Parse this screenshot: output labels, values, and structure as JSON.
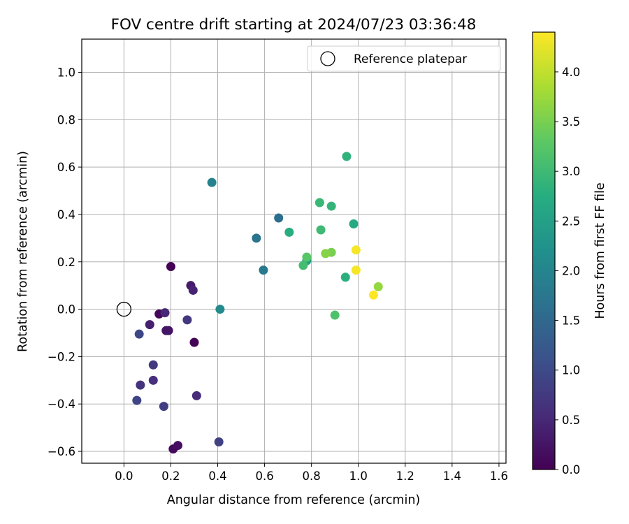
{
  "chart_data": {
    "type": "scatter",
    "title": "FOV centre drift starting at 2024/07/23 03:36:48",
    "xlabel": "Angular distance from reference (arcmin)",
    "ylabel": "Rotation from reference (arcmin)",
    "xlim": [
      -0.18,
      1.63
    ],
    "ylim": [
      -0.65,
      1.14
    ],
    "xticks": [
      "0.0",
      "0.2",
      "0.4",
      "0.6",
      "0.8",
      "1.0",
      "1.2",
      "1.4",
      "1.6"
    ],
    "yticks": [
      "−0.6",
      "−0.4",
      "−0.2",
      "0.0",
      "0.2",
      "0.4",
      "0.6",
      "0.8",
      "1.0"
    ],
    "grid": true,
    "legend": {
      "placement": "top-right",
      "entries": [
        "Reference platepar"
      ]
    },
    "reference_point": {
      "x": 0.0,
      "y": 0.0
    },
    "colorbar": {
      "label": "Hours from first FF file",
      "colormap": "viridis",
      "range": [
        0.0,
        4.4
      ],
      "ticks": [
        "0.0",
        "0.5",
        "1.0",
        "1.5",
        "2.0",
        "2.5",
        "3.0",
        "3.5",
        "4.0"
      ]
    },
    "series": [
      {
        "points": [
          {
            "x": 0.2,
            "y": 0.18,
            "c": 0.02
          },
          {
            "x": 0.3,
            "y": -0.14,
            "c": 0.05
          },
          {
            "x": 0.15,
            "y": -0.02,
            "c": 0.08
          },
          {
            "x": 0.21,
            "y": -0.59,
            "c": 0.12
          },
          {
            "x": 0.23,
            "y": -0.575,
            "c": 0.17
          },
          {
            "x": 0.19,
            "y": -0.09,
            "c": 0.22
          },
          {
            "x": 0.18,
            "y": -0.09,
            "c": 0.27
          },
          {
            "x": 0.285,
            "y": 0.1,
            "c": 0.33
          },
          {
            "x": 0.11,
            "y": -0.065,
            "c": 0.38
          },
          {
            "x": 0.295,
            "y": 0.08,
            "c": 0.45
          },
          {
            "x": 0.175,
            "y": -0.015,
            "c": 0.5
          },
          {
            "x": 0.31,
            "y": -0.365,
            "c": 0.55
          },
          {
            "x": 0.125,
            "y": -0.3,
            "c": 0.6
          },
          {
            "x": 0.07,
            "y": -0.32,
            "c": 0.65
          },
          {
            "x": 0.27,
            "y": -0.045,
            "c": 0.7
          },
          {
            "x": 0.125,
            "y": -0.235,
            "c": 0.75
          },
          {
            "x": 0.17,
            "y": -0.41,
            "c": 0.8
          },
          {
            "x": 0.405,
            "y": -0.56,
            "c": 0.85
          },
          {
            "x": 0.055,
            "y": -0.385,
            "c": 0.9
          },
          {
            "x": 0.065,
            "y": -0.105,
            "c": 0.95
          },
          {
            "x": 0.66,
            "y": 0.385,
            "c": 1.6
          },
          {
            "x": 0.565,
            "y": 0.3,
            "c": 1.7
          },
          {
            "x": 0.595,
            "y": 0.165,
            "c": 1.8
          },
          {
            "x": 0.375,
            "y": 0.535,
            "c": 1.95
          },
          {
            "x": 0.41,
            "y": 0.0,
            "c": 2.1
          },
          {
            "x": 0.78,
            "y": 0.205,
            "c": 2.5
          },
          {
            "x": 0.98,
            "y": 0.36,
            "c": 2.7
          },
          {
            "x": 0.705,
            "y": 0.325,
            "c": 2.75
          },
          {
            "x": 0.945,
            "y": 0.135,
            "c": 2.8
          },
          {
            "x": 0.95,
            "y": 0.645,
            "c": 2.85
          },
          {
            "x": 0.885,
            "y": 0.435,
            "c": 2.9
          },
          {
            "x": 0.835,
            "y": 0.45,
            "c": 2.95
          },
          {
            "x": 0.84,
            "y": 0.335,
            "c": 3.0
          },
          {
            "x": 0.765,
            "y": 0.185,
            "c": 3.05
          },
          {
            "x": 0.9,
            "y": -0.025,
            "c": 3.15
          },
          {
            "x": 0.78,
            "y": 0.22,
            "c": 3.25
          },
          {
            "x": 0.885,
            "y": 0.24,
            "c": 3.5
          },
          {
            "x": 0.86,
            "y": 0.235,
            "c": 3.6
          },
          {
            "x": 1.085,
            "y": 0.095,
            "c": 3.7
          },
          {
            "x": 0.99,
            "y": 0.165,
            "c": 4.35
          },
          {
            "x": 0.99,
            "y": 0.25,
            "c": 4.35
          },
          {
            "x": 1.065,
            "y": 0.06,
            "c": 4.4
          }
        ]
      }
    ]
  }
}
